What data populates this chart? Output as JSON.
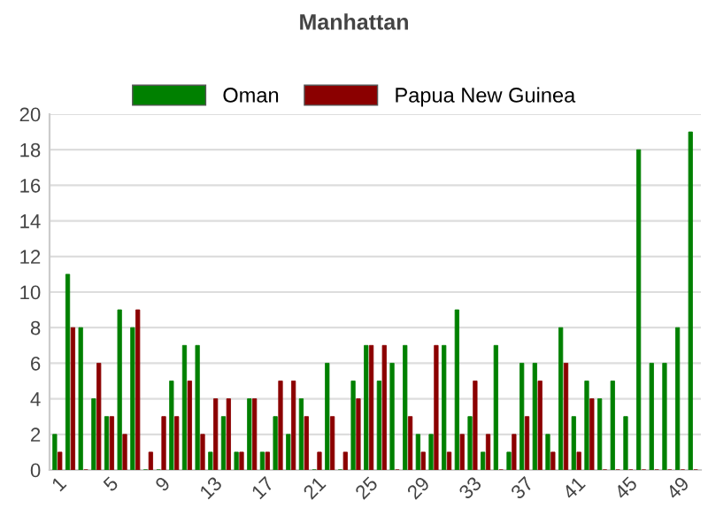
{
  "chart_data": {
    "type": "bar",
    "title": "Manhattan",
    "categories": [
      "1",
      null,
      null,
      null,
      "5",
      null,
      null,
      null,
      "9",
      null,
      null,
      null,
      "13",
      null,
      null,
      null,
      "17",
      null,
      null,
      null,
      "21",
      null,
      null,
      null,
      "25",
      null,
      null,
      null,
      "29",
      null,
      null,
      null,
      "33",
      null,
      null,
      null,
      "37",
      null,
      null,
      null,
      "41",
      null,
      null,
      null,
      "45",
      null,
      null,
      null,
      "49",
      null
    ],
    "series": [
      {
        "name": "Oman",
        "color": "#008000",
        "values": [
          2,
          11,
          8,
          4,
          3,
          9,
          8,
          0,
          0,
          5,
          7,
          7,
          1,
          3,
          1,
          4,
          1,
          3,
          2,
          4,
          0,
          6,
          0,
          5,
          7,
          5,
          6,
          7,
          2,
          2,
          7,
          9,
          3,
          1,
          7,
          1,
          6,
          6,
          2,
          8,
          3,
          5,
          4,
          5,
          3,
          18,
          6,
          6,
          8,
          19
        ]
      },
      {
        "name": "Papua New Guinea",
        "color": "#8b0000",
        "values": [
          1,
          8,
          0,
          6,
          3,
          2,
          9,
          1,
          3,
          3,
          5,
          2,
          4,
          4,
          1,
          4,
          1,
          5,
          5,
          3,
          1,
          3,
          1,
          4,
          7,
          7,
          0,
          3,
          1,
          7,
          1,
          2,
          5,
          2,
          0,
          2,
          3,
          5,
          1,
          6,
          1,
          4,
          0,
          0,
          0,
          0,
          0,
          0,
          0,
          0
        ]
      }
    ],
    "ylim": [
      0,
      20
    ],
    "yticks": [
      0,
      2,
      4,
      6,
      8,
      10,
      12,
      14,
      16,
      18,
      20
    ],
    "grid": "y",
    "legend": "top"
  }
}
